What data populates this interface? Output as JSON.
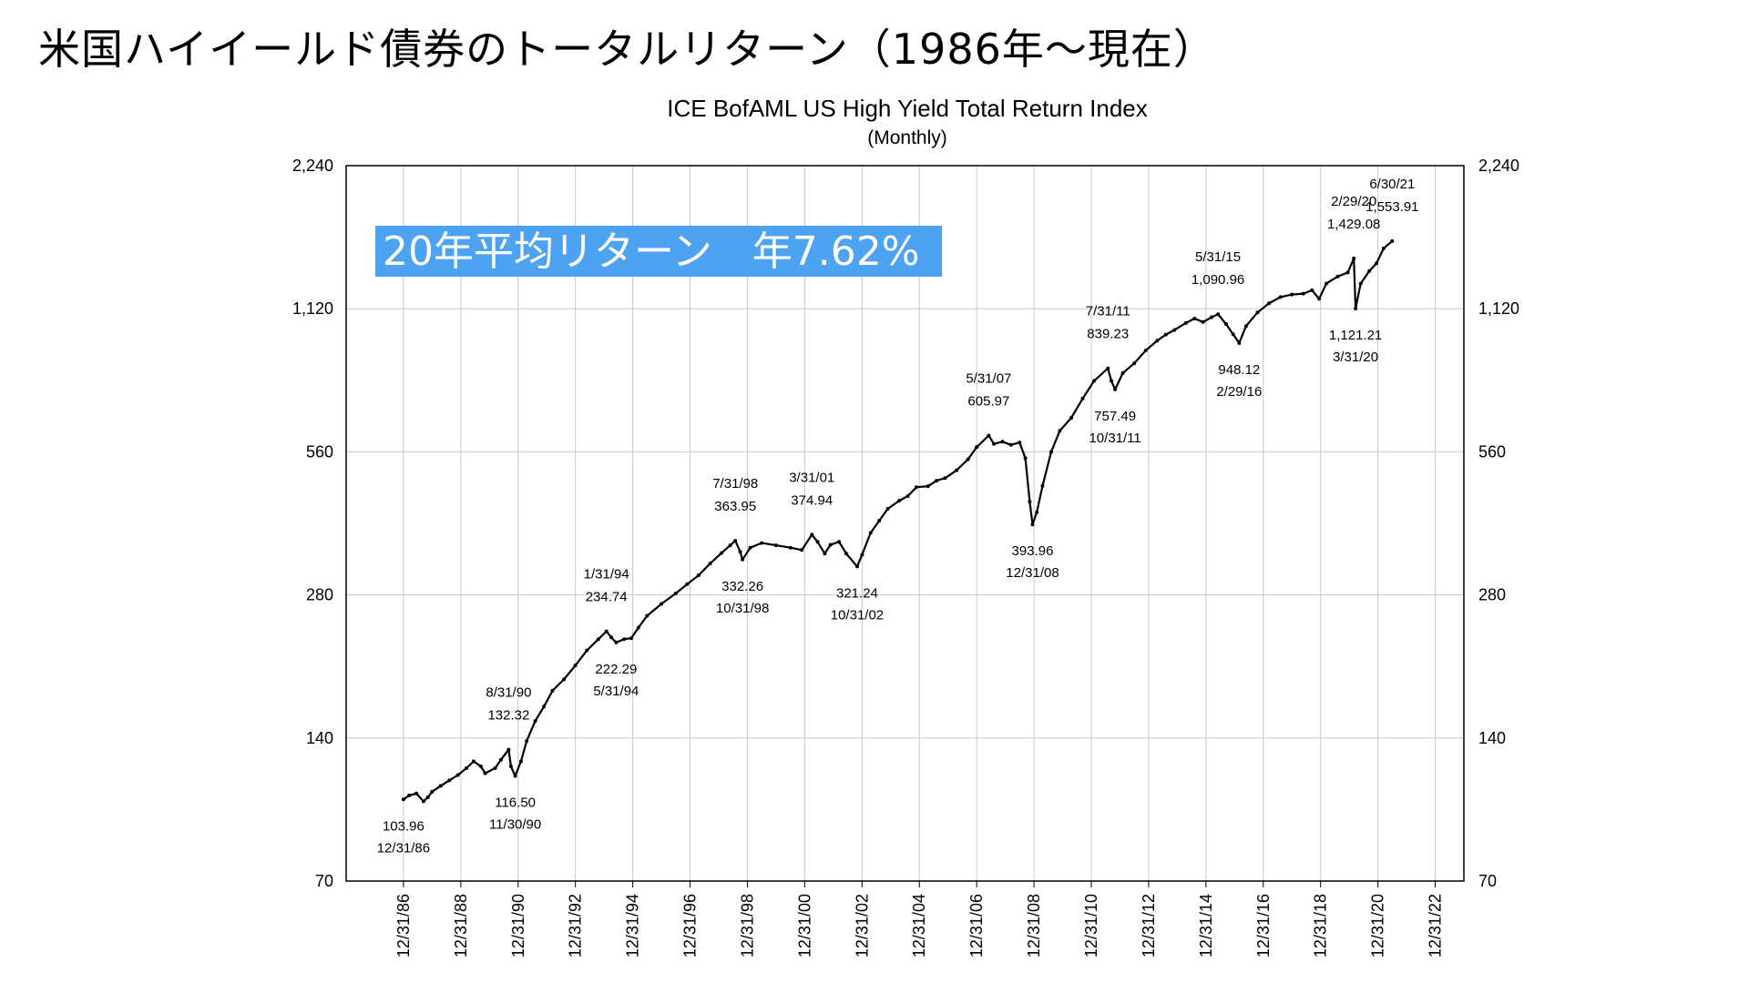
{
  "slide_title": "米国ハイイールド債券のトータルリターン（1986年〜現在）",
  "highlight": {
    "text": "20年平均リターン　年7.62%",
    "bg_color": "#4da3f0",
    "text_color": "#ffffff"
  },
  "chart_data": {
    "type": "line",
    "title": "ICE BofAML US High Yield Total Return Index",
    "subtitle": "(Monthly)",
    "xlabel": "",
    "ylabel": "",
    "y_scale": "log",
    "ylim": [
      70,
      2240
    ],
    "y_ticks": [
      70,
      140,
      280,
      560,
      1120,
      2240
    ],
    "y_tick_labels": [
      "70",
      "140",
      "280",
      "560",
      "1,120",
      "2,240"
    ],
    "x_range": [
      1985.0,
      2024.0
    ],
    "x_ticks": [
      "12/31/86",
      "12/31/88",
      "12/31/90",
      "12/31/92",
      "12/31/94",
      "12/31/96",
      "12/31/98",
      "12/31/00",
      "12/31/02",
      "12/31/04",
      "12/31/06",
      "12/31/08",
      "12/31/10",
      "12/31/12",
      "12/31/14",
      "12/31/16",
      "12/31/18",
      "12/31/20",
      "12/31/22"
    ],
    "x_tick_years": [
      1987,
      1989,
      1991,
      1993,
      1995,
      1997,
      1999,
      2001,
      2003,
      2005,
      2007,
      2009,
      2011,
      2013,
      2015,
      2017,
      2019,
      2021,
      2023
    ],
    "grid": true,
    "series": [
      {
        "color": "#000000",
        "points": [
          [
            1987.0,
            103.96
          ],
          [
            1987.2,
            106
          ],
          [
            1987.45,
            107
          ],
          [
            1987.7,
            103
          ],
          [
            1987.85,
            105
          ],
          [
            1988.0,
            108
          ],
          [
            1988.3,
            111
          ],
          [
            1988.6,
            114
          ],
          [
            1988.9,
            117
          ],
          [
            1989.2,
            121
          ],
          [
            1989.45,
            125
          ],
          [
            1989.7,
            122
          ],
          [
            1989.85,
            118
          ],
          [
            1990.2,
            121
          ],
          [
            1990.4,
            126
          ],
          [
            1990.67,
            132.32
          ],
          [
            1990.75,
            122
          ],
          [
            1990.9,
            116.5
          ],
          [
            1991.1,
            125
          ],
          [
            1991.3,
            138
          ],
          [
            1991.6,
            152
          ],
          [
            1991.9,
            163
          ],
          [
            1992.2,
            176
          ],
          [
            1992.6,
            186
          ],
          [
            1993.0,
            199
          ],
          [
            1993.4,
            214
          ],
          [
            1993.8,
            226
          ],
          [
            1994.08,
            234.74
          ],
          [
            1994.25,
            228
          ],
          [
            1994.42,
            222.29
          ],
          [
            1994.7,
            226
          ],
          [
            1994.95,
            227
          ],
          [
            1995.2,
            239
          ],
          [
            1995.5,
            253
          ],
          [
            1996.0,
            268
          ],
          [
            1996.5,
            282
          ],
          [
            1996.9,
            295
          ],
          [
            1997.3,
            308
          ],
          [
            1997.7,
            326
          ],
          [
            1998.1,
            343
          ],
          [
            1998.4,
            356
          ],
          [
            1998.58,
            363.95
          ],
          [
            1998.75,
            345
          ],
          [
            1998.83,
            332.26
          ],
          [
            1999.1,
            352
          ],
          [
            1999.5,
            360
          ],
          [
            2000.0,
            356
          ],
          [
            2000.5,
            352
          ],
          [
            2000.9,
            348
          ],
          [
            2001.25,
            374.94
          ],
          [
            2001.45,
            362
          ],
          [
            2001.7,
            342
          ],
          [
            2001.9,
            357
          ],
          [
            2002.2,
            362
          ],
          [
            2002.45,
            342
          ],
          [
            2002.83,
            321.24
          ],
          [
            2003.0,
            340
          ],
          [
            2003.3,
            378
          ],
          [
            2003.6,
            401
          ],
          [
            2003.9,
            425
          ],
          [
            2004.3,
            442
          ],
          [
            2004.6,
            452
          ],
          [
            2004.9,
            472
          ],
          [
            2005.3,
            474
          ],
          [
            2005.6,
            487
          ],
          [
            2005.9,
            493
          ],
          [
            2006.3,
            512
          ],
          [
            2006.7,
            540
          ],
          [
            2007.0,
            573
          ],
          [
            2007.42,
            605.97
          ],
          [
            2007.6,
            582
          ],
          [
            2007.9,
            588
          ],
          [
            2008.2,
            579
          ],
          [
            2008.5,
            586
          ],
          [
            2008.7,
            543
          ],
          [
            2008.85,
            440
          ],
          [
            2008.95,
            393.96
          ],
          [
            2009.1,
            418
          ],
          [
            2009.3,
            475
          ],
          [
            2009.6,
            560
          ],
          [
            2009.9,
            620
          ],
          [
            2010.3,
            660
          ],
          [
            2010.7,
            725
          ],
          [
            2011.1,
            790
          ],
          [
            2011.58,
            839.23
          ],
          [
            2011.7,
            790
          ],
          [
            2011.83,
            757.49
          ],
          [
            2012.1,
            820
          ],
          [
            2012.5,
            860
          ],
          [
            2012.9,
            915
          ],
          [
            2013.3,
            960
          ],
          [
            2013.6,
            988
          ],
          [
            2013.9,
            1010
          ],
          [
            2014.3,
            1045
          ],
          [
            2014.6,
            1068
          ],
          [
            2014.9,
            1050
          ],
          [
            2015.2,
            1075
          ],
          [
            2015.42,
            1090.96
          ],
          [
            2015.7,
            1040
          ],
          [
            2015.95,
            990
          ],
          [
            2016.16,
            948.12
          ],
          [
            2016.4,
            1030
          ],
          [
            2016.8,
            1100
          ],
          [
            2017.2,
            1150
          ],
          [
            2017.6,
            1185
          ],
          [
            2018.0,
            1200
          ],
          [
            2018.4,
            1205
          ],
          [
            2018.7,
            1225
          ],
          [
            2018.95,
            1175
          ],
          [
            2019.2,
            1265
          ],
          [
            2019.6,
            1310
          ],
          [
            2019.95,
            1335
          ],
          [
            2020.16,
            1429.08
          ],
          [
            2020.22,
            1121.21
          ],
          [
            2020.4,
            1265
          ],
          [
            2020.7,
            1345
          ],
          [
            2020.95,
            1395
          ],
          [
            2021.2,
            1500
          ],
          [
            2021.5,
            1553.91
          ]
        ]
      }
    ],
    "annotations": [
      {
        "date": "12/31/86",
        "value": "103.96",
        "x": 1987.0,
        "y": 103.96,
        "pos": "below"
      },
      {
        "date": "8/31/90",
        "value": "132.32",
        "x": 1990.67,
        "y": 132.32,
        "pos": "above"
      },
      {
        "date": "11/30/90",
        "value": "116.50",
        "x": 1990.9,
        "y": 116.5,
        "pos": "below"
      },
      {
        "date": "1/31/94",
        "value": "234.74",
        "x": 1994.08,
        "y": 234.74,
        "pos": "above"
      },
      {
        "date": "5/31/94",
        "value": "222.29",
        "x": 1994.42,
        "y": 222.29,
        "pos": "below"
      },
      {
        "date": "7/31/98",
        "value": "363.95",
        "x": 1998.58,
        "y": 363.95,
        "pos": "above"
      },
      {
        "date": "10/31/98",
        "value": "332.26",
        "x": 1998.83,
        "y": 332.26,
        "pos": "below"
      },
      {
        "date": "3/31/01",
        "value": "374.94",
        "x": 2001.25,
        "y": 374.94,
        "pos": "above"
      },
      {
        "date": "10/31/02",
        "value": "321.24",
        "x": 2002.83,
        "y": 321.24,
        "pos": "below"
      },
      {
        "date": "5/31/07",
        "value": "605.97",
        "x": 2007.42,
        "y": 605.97,
        "pos": "above"
      },
      {
        "date": "12/31/08",
        "value": "393.96",
        "x": 2008.95,
        "y": 393.96,
        "pos": "below"
      },
      {
        "date": "7/31/11",
        "value": "839.23",
        "x": 2011.58,
        "y": 839.23,
        "pos": "above"
      },
      {
        "date": "10/31/11",
        "value": "757.49",
        "x": 2011.83,
        "y": 757.49,
        "pos": "below"
      },
      {
        "date": "5/31/15",
        "value": "1,090.96",
        "x": 2015.42,
        "y": 1090.96,
        "pos": "above"
      },
      {
        "date": "2/29/16",
        "value": "948.12",
        "x": 2016.16,
        "y": 948.12,
        "pos": "below"
      },
      {
        "date": "2/29/20",
        "value": "1,429.08",
        "x": 2020.16,
        "y": 1429.08,
        "pos": "above"
      },
      {
        "date": "3/31/20",
        "value": "1,121.21",
        "x": 2020.22,
        "y": 1121.21,
        "pos": "below"
      },
      {
        "date": "6/30/21",
        "value": "1,553.91",
        "x": 2021.5,
        "y": 1553.91,
        "pos": "above"
      }
    ]
  }
}
